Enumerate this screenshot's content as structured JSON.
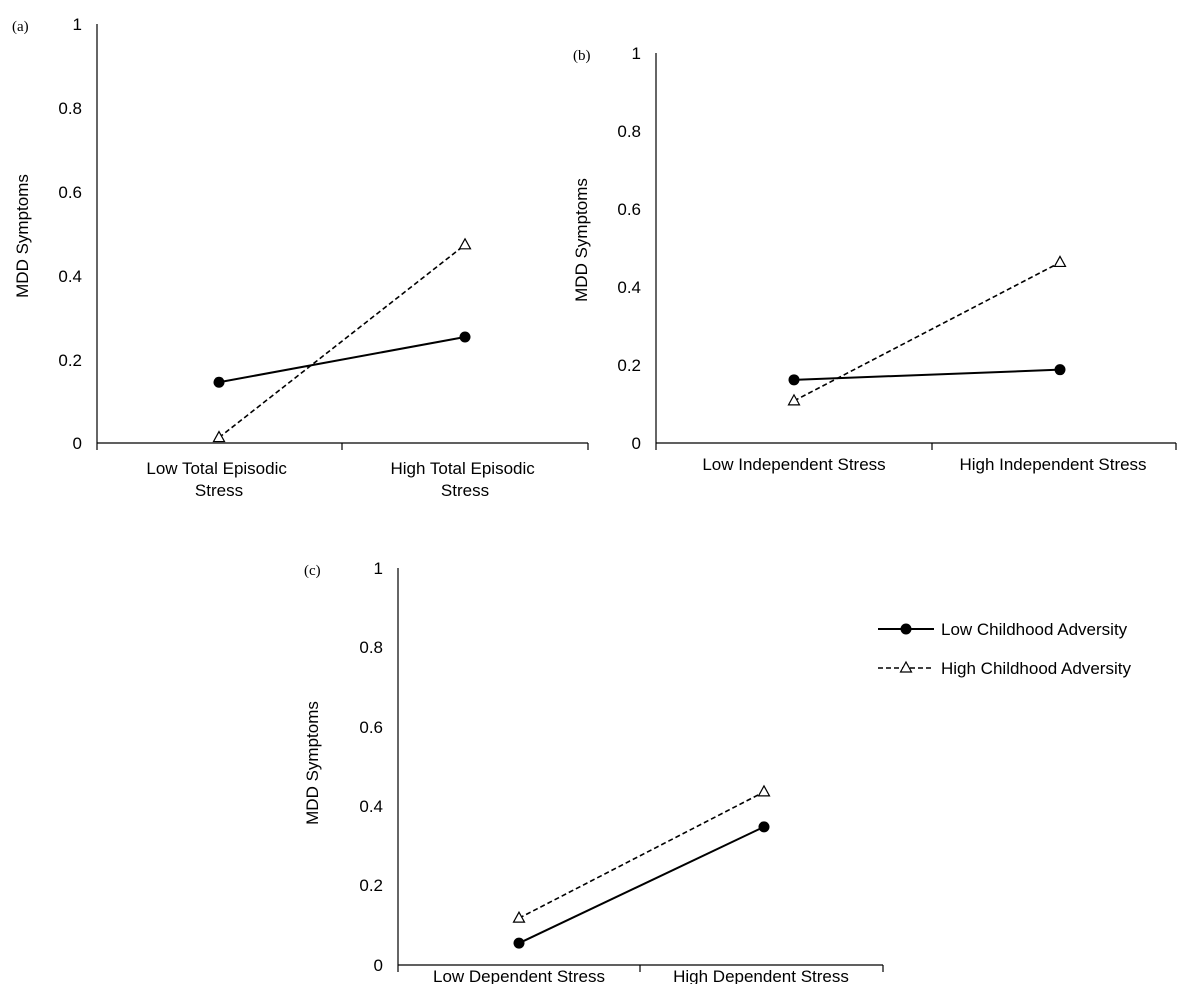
{
  "chart_data": [
    {
      "type": "line",
      "panel_label": "(a)",
      "categories": [
        "Low Total Episodic Stress",
        "High Total Episodic Stress"
      ],
      "ylabel": "MDD Symptoms",
      "ylim": [
        0,
        1
      ],
      "yticks": [
        "0",
        "0.2",
        "0.4",
        "0.6",
        "0.8",
        "1"
      ],
      "series": [
        {
          "name": "Low Childhood Adversity",
          "values": [
            0.145,
            0.253
          ]
        },
        {
          "name": "High Childhood Adversity",
          "values": [
            0.013,
            0.473
          ]
        }
      ]
    },
    {
      "type": "line",
      "panel_label": "(b)",
      "categories": [
        "Low Independent Stress",
        "High Independent Stress"
      ],
      "ylabel": "MDD Symptoms",
      "ylim": [
        0,
        1
      ],
      "yticks": [
        "0",
        "0.2",
        "0.4",
        "0.6",
        "0.8",
        "1"
      ],
      "series": [
        {
          "name": "Low Childhood Adversity",
          "values": [
            0.162,
            0.188
          ]
        },
        {
          "name": "High Childhood Adversity",
          "values": [
            0.108,
            0.463
          ]
        }
      ]
    },
    {
      "type": "line",
      "panel_label": "(c)",
      "categories": [
        "Low Dependent Stress",
        "High Dependent Stress"
      ],
      "ylabel": "MDD Symptoms",
      "ylim": [
        0,
        1
      ],
      "yticks": [
        "0",
        "0.2",
        "0.4",
        "0.6",
        "0.8",
        "1"
      ],
      "series": [
        {
          "name": "Low Childhood Adversity",
          "values": [
            0.055,
            0.348
          ]
        },
        {
          "name": "High Childhood Adversity",
          "values": [
            0.118,
            0.436
          ]
        }
      ]
    }
  ],
  "legend": {
    "items": [
      {
        "label": "Low Childhood Adversity",
        "style": "solid",
        "marker": "filled-circle"
      },
      {
        "label": "High Childhood Adversity",
        "style": "dashed",
        "marker": "open-triangle"
      }
    ]
  }
}
